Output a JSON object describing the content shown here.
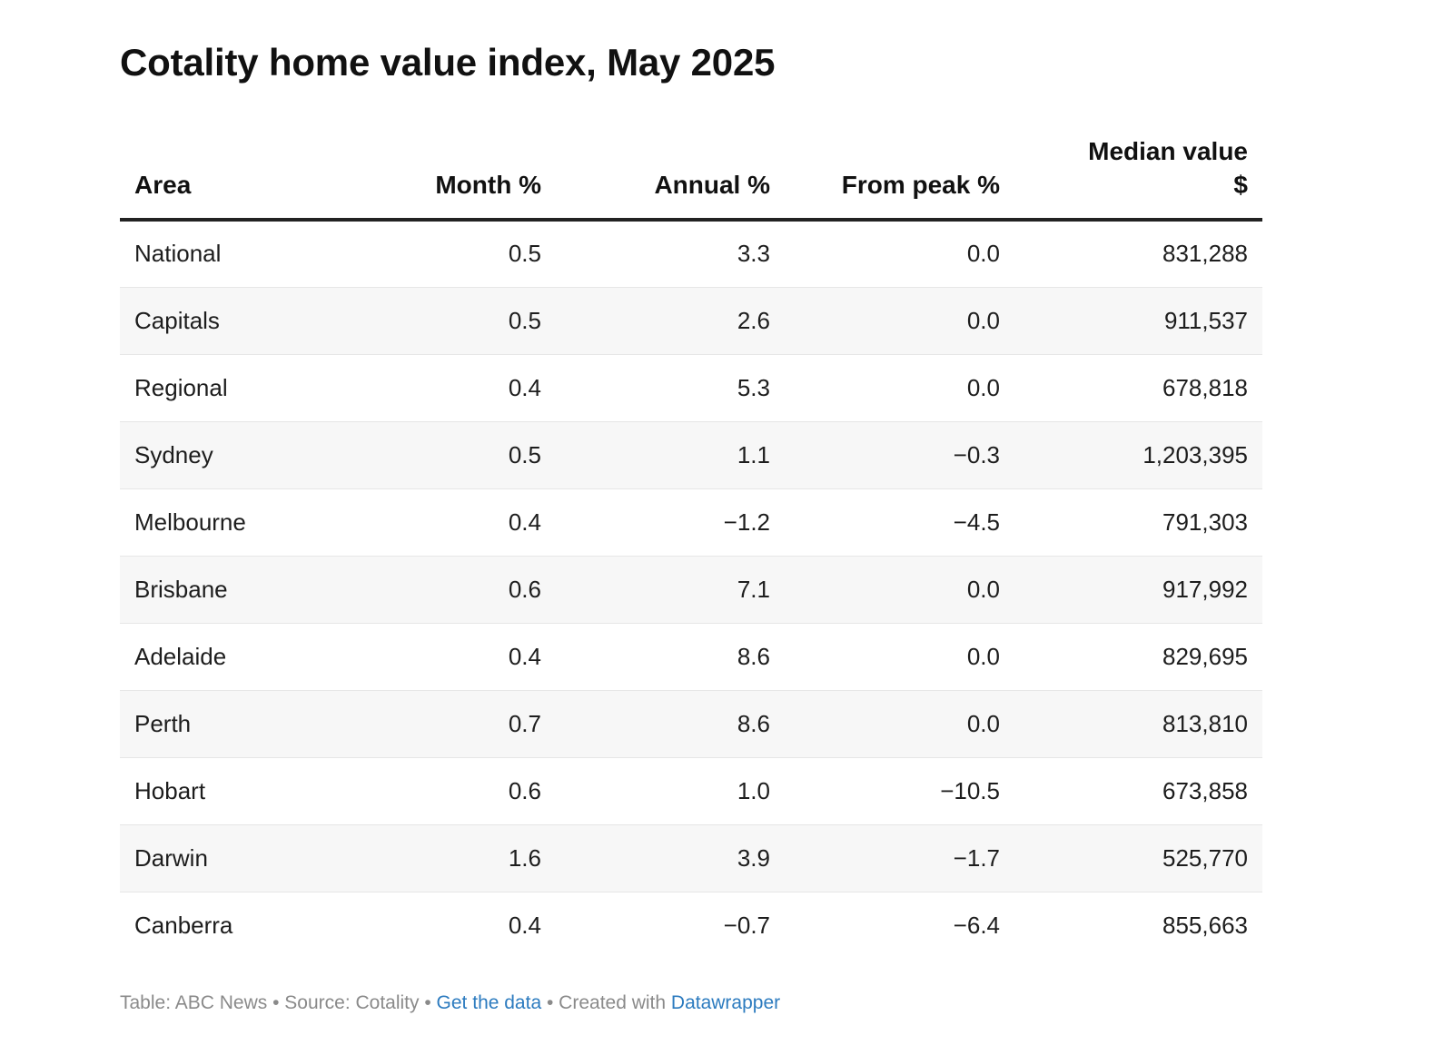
{
  "chart_data": {
    "type": "table",
    "title": "Cotality home value index, May 2025",
    "columns": [
      {
        "label": "Area",
        "label_lines": [
          "Area"
        ],
        "align": "left"
      },
      {
        "label": "Month %",
        "label_lines": [
          "Month %"
        ],
        "align": "right"
      },
      {
        "label": "Annual %",
        "label_lines": [
          "Annual %"
        ],
        "align": "right"
      },
      {
        "label": "From peak %",
        "label_lines": [
          "From peak %"
        ],
        "align": "right"
      },
      {
        "label": "Median value $",
        "label_lines": [
          "Median value",
          "$"
        ],
        "align": "right"
      }
    ],
    "rows": [
      {
        "area": "National",
        "month": "0.5",
        "annual": "3.3",
        "from_peak": "0.0",
        "median": "831,288"
      },
      {
        "area": "Capitals",
        "month": "0.5",
        "annual": "2.6",
        "from_peak": "0.0",
        "median": "911,537"
      },
      {
        "area": "Regional",
        "month": "0.4",
        "annual": "5.3",
        "from_peak": "0.0",
        "median": "678,818"
      },
      {
        "area": "Sydney",
        "month": "0.5",
        "annual": "1.1",
        "from_peak": "−0.3",
        "median": "1,203,395"
      },
      {
        "area": "Melbourne",
        "month": "0.4",
        "annual": "−1.2",
        "from_peak": "−4.5",
        "median": "791,303"
      },
      {
        "area": "Brisbane",
        "month": "0.6",
        "annual": "7.1",
        "from_peak": "0.0",
        "median": "917,992"
      },
      {
        "area": "Adelaide",
        "month": "0.4",
        "annual": "8.6",
        "from_peak": "0.0",
        "median": "829,695"
      },
      {
        "area": "Perth",
        "month": "0.7",
        "annual": "8.6",
        "from_peak": "0.0",
        "median": "813,810"
      },
      {
        "area": "Hobart",
        "month": "0.6",
        "annual": "1.0",
        "from_peak": "−10.5",
        "median": "673,858"
      },
      {
        "area": "Darwin",
        "month": "1.6",
        "annual": "3.9",
        "from_peak": "−1.7",
        "median": "525,770"
      },
      {
        "area": "Canberra",
        "month": "0.4",
        "annual": "−0.7",
        "from_peak": "−6.4",
        "median": "855,663"
      }
    ]
  },
  "footer": {
    "table_credit": "Table: ABC News",
    "separator": " • ",
    "source": "Source: Cotality",
    "get_data_link": "Get the data",
    "created_with": "Created with ",
    "datawrapper_link": "Datawrapper"
  },
  "colors": {
    "link": "#2c7bbf",
    "footer_text": "#8a8a8a",
    "header_rule": "#222222",
    "alt_row_bg": "#f7f7f7"
  }
}
